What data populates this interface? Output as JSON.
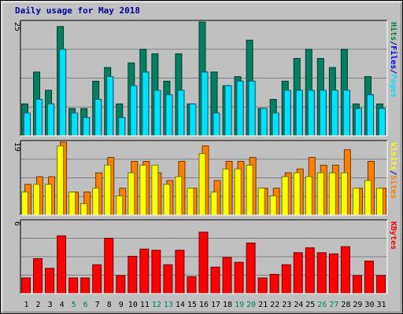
{
  "title": "Daily usage for May 2018",
  "chart_data": [
    {
      "type": "bar",
      "panel": "pages-files-hits",
      "ylim": [
        0,
        25
      ],
      "ytick_label": "25",
      "categories": [
        "1",
        "2",
        "3",
        "4",
        "5",
        "6",
        "7",
        "8",
        "9",
        "10",
        "11",
        "12",
        "13",
        "14",
        "15",
        "16",
        "17",
        "18",
        "19",
        "20",
        "21",
        "22",
        "23",
        "24",
        "25",
        "26",
        "27",
        "28",
        "29",
        "30",
        "31"
      ],
      "legend": [
        {
          "label": "Pages",
          "color": "#00e0ff"
        },
        {
          "label": "/",
          "color": "#000080"
        },
        {
          "label": "Files",
          "color": "#0000ff"
        },
        {
          "label": "/",
          "color": "#000080"
        },
        {
          "label": "Hits",
          "color": "#008040"
        }
      ],
      "series": [
        {
          "name": "Hits",
          "color": "#008060",
          "values": [
            7,
            14,
            10,
            24,
            6,
            6,
            12,
            15,
            7,
            16,
            19,
            18,
            12,
            18,
            7,
            25,
            14,
            11,
            13,
            21,
            6,
            8,
            12,
            17,
            19,
            17,
            15,
            19,
            7,
            13,
            7
          ]
        },
        {
          "name": "Files",
          "color": "#0000ff",
          "values": [
            5,
            8,
            7,
            19,
            5,
            4,
            8,
            13,
            4,
            11,
            14,
            10,
            9,
            10,
            7,
            14,
            5,
            11,
            12,
            12,
            6,
            5,
            10,
            10,
            10,
            10,
            10,
            10,
            6,
            9,
            6
          ]
        },
        {
          "name": "Pages",
          "color": "#00e0ff",
          "values": [
            5,
            8,
            7,
            19,
            5,
            4,
            8,
            13,
            4,
            11,
            14,
            10,
            9,
            10,
            7,
            14,
            5,
            11,
            12,
            12,
            6,
            5,
            10,
            10,
            10,
            10,
            10,
            10,
            6,
            9,
            6
          ]
        }
      ]
    },
    {
      "type": "bar",
      "panel": "sites-visits",
      "ylim": [
        0,
        19
      ],
      "ytick_label": "19",
      "categories": [
        "1",
        "2",
        "3",
        "4",
        "5",
        "6",
        "7",
        "8",
        "9",
        "10",
        "11",
        "12",
        "13",
        "14",
        "15",
        "16",
        "17",
        "18",
        "19",
        "20",
        "21",
        "22",
        "23",
        "24",
        "25",
        "26",
        "27",
        "28",
        "29",
        "30",
        "31"
      ],
      "legend": [
        {
          "label": "Sites",
          "color": "#ff8000"
        },
        {
          "label": "/",
          "color": "#000080"
        },
        {
          "label": "Visits",
          "color": "#ffff00"
        }
      ],
      "series": [
        {
          "name": "Sites",
          "color": "#ff8000",
          "values": [
            8,
            10,
            10,
            19,
            6,
            6,
            11,
            15,
            7,
            14,
            14,
            11,
            9,
            14,
            7,
            18,
            9,
            14,
            14,
            15,
            7,
            7,
            11,
            12,
            15,
            13,
            13,
            17,
            7,
            14,
            7
          ]
        },
        {
          "name": "Visits",
          "color": "#ffff00",
          "values": [
            6,
            8,
            8,
            18,
            6,
            3,
            7,
            13,
            5,
            11,
            13,
            13,
            8,
            10,
            7,
            16,
            6,
            12,
            12,
            13,
            7,
            5,
            10,
            11,
            10,
            11,
            11,
            11,
            7,
            9,
            7
          ]
        }
      ]
    },
    {
      "type": "bar",
      "panel": "kbytes",
      "ylim": [
        0,
        6
      ],
      "ytick_label": "6",
      "categories": [
        "1",
        "2",
        "3",
        "4",
        "5",
        "6",
        "7",
        "8",
        "9",
        "10",
        "11",
        "12",
        "13",
        "14",
        "15",
        "16",
        "17",
        "18",
        "19",
        "20",
        "21",
        "22",
        "23",
        "24",
        "25",
        "26",
        "27",
        "28",
        "29",
        "30",
        "31"
      ],
      "x_label_colors": [
        "#000000",
        "#000000",
        "#000000",
        "#000000",
        "#008060",
        "#008060",
        "#000000",
        "#000000",
        "#000000",
        "#000000",
        "#000000",
        "#008060",
        "#008060",
        "#000000",
        "#000000",
        "#000000",
        "#000000",
        "#000000",
        "#008060",
        "#008060",
        "#000000",
        "#000000",
        "#000000",
        "#000000",
        "#000000",
        "#008060",
        "#008060",
        "#000000",
        "#000000",
        "#000000",
        "#000000"
      ],
      "legend": [
        {
          "label": "KBytes",
          "color": "#ff0000"
        }
      ],
      "series": [
        {
          "name": "KBytes",
          "color": "#ff0000",
          "values": [
            1.3,
            2.9,
            2.1,
            4.8,
            1.3,
            1.3,
            2.4,
            4.6,
            1.5,
            3.1,
            3.7,
            3.6,
            2.4,
            3.6,
            1.4,
            5.1,
            2.2,
            3.0,
            2.6,
            4.2,
            1.3,
            1.6,
            2.4,
            3.4,
            3.8,
            3.4,
            3.3,
            3.9,
            1.5,
            2.7,
            1.5
          ]
        }
      ]
    }
  ]
}
